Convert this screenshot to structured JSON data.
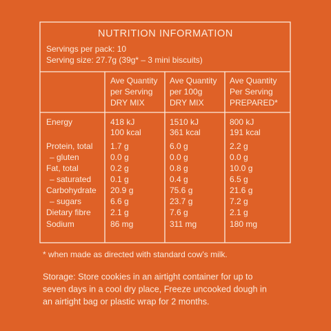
{
  "panel": {
    "title": "NUTRITION INFORMATION",
    "servings": [
      "Servings per pack: 10",
      "Serving size: 27.7g (39g* – 3 mini biscuits)"
    ],
    "columns": [
      {
        "lines": [
          "Ave Quantity",
          "per Serving",
          "DRY MIX"
        ]
      },
      {
        "lines": [
          "Ave Quantity",
          "per 100g",
          "DRY MIX"
        ]
      },
      {
        "lines": [
          "Ave Quantity",
          "Per Serving",
          "PREPARED*"
        ]
      }
    ],
    "rows": [
      {
        "label": "Energy",
        "values": [
          [
            "418 kJ",
            "100 kcal"
          ],
          [
            "1510 kJ",
            "361 kcal"
          ],
          [
            "800 kJ",
            "191 kcal"
          ]
        ]
      },
      {
        "label": "Protein, total",
        "values": [
          [
            "1.7 g"
          ],
          [
            "6.0 g"
          ],
          [
            "2.2 g"
          ]
        ]
      },
      {
        "label": "– gluten",
        "values": [
          [
            "0.0 g"
          ],
          [
            "0.0 g"
          ],
          [
            "0.0 g"
          ]
        ]
      },
      {
        "label": "Fat, total",
        "values": [
          [
            "0.2 g"
          ],
          [
            "0.8 g"
          ],
          [
            "10.0 g"
          ]
        ]
      },
      {
        "label": "– saturated",
        "values": [
          [
            "0.1 g"
          ],
          [
            "0.4 g"
          ],
          [
            "6.5 g"
          ]
        ]
      },
      {
        "label": "Carbohydrate",
        "values": [
          [
            "20.9 g"
          ],
          [
            "75.6 g"
          ],
          [
            "21.6 g"
          ]
        ]
      },
      {
        "label": "– sugars",
        "values": [
          [
            "6.6 g"
          ],
          [
            "23.7 g"
          ],
          [
            "7.2 g"
          ]
        ]
      },
      {
        "label": "Dietary fibre",
        "values": [
          [
            "2.1 g"
          ],
          [
            "7.6 g"
          ],
          [
            "2.1 g"
          ]
        ]
      },
      {
        "label": "Sodium",
        "values": [
          [
            "86 mg"
          ],
          [
            "311 mg"
          ],
          [
            "180 mg"
          ]
        ]
      }
    ]
  },
  "footnote": "* when made as directed with standard cow's milk.",
  "storage": [
    "Storage: Store cookies in an airtight container for up to",
    "seven days in a cool dry place, Freeze uncooked dough in",
    "an airtight bag or plastic wrap for 2 months."
  ]
}
